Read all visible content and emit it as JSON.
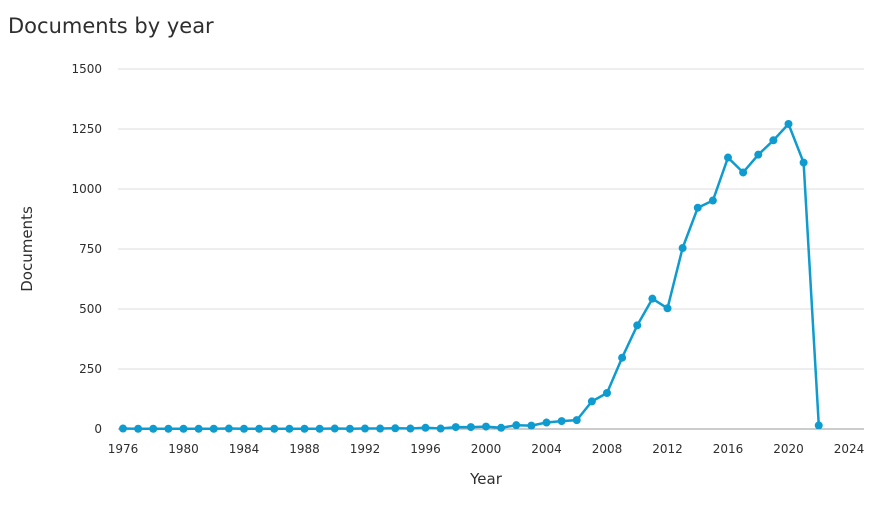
{
  "title": "Documents by year",
  "chart_data": {
    "type": "line",
    "title": "Documents by year",
    "xlabel": "Year",
    "ylabel": "Documents",
    "xlim": [
      1976,
      2024
    ],
    "ylim": [
      0,
      1500
    ],
    "xticks": [
      1976,
      1980,
      1984,
      1988,
      1992,
      1996,
      2000,
      2004,
      2008,
      2012,
      2016,
      2020,
      2024
    ],
    "yticks": [
      0,
      250,
      500,
      750,
      1000,
      1250,
      1500
    ],
    "grid": true,
    "legend": "none",
    "color": "#0e9bcf",
    "x": [
      1976,
      1977,
      1978,
      1979,
      1980,
      1981,
      1982,
      1983,
      1984,
      1985,
      1986,
      1987,
      1988,
      1989,
      1990,
      1991,
      1992,
      1993,
      1994,
      1995,
      1996,
      1997,
      1998,
      1999,
      2000,
      2001,
      2002,
      2003,
      2004,
      2005,
      2006,
      2007,
      2008,
      2009,
      2010,
      2011,
      2012,
      2013,
      2014,
      2015,
      2016,
      2017,
      2018,
      2019,
      2020,
      2021,
      2022
    ],
    "y": [
      2,
      1,
      1,
      1,
      1,
      1,
      1,
      2,
      1,
      1,
      1,
      1,
      1,
      1,
      2,
      1,
      2,
      2,
      3,
      2,
      5,
      2,
      8,
      8,
      10,
      5,
      16,
      14,
      27,
      33,
      37,
      115,
      150,
      297,
      432,
      543,
      503,
      754,
      922,
      952,
      1131,
      1069,
      1143,
      1203,
      1271,
      1110,
      15
    ]
  }
}
